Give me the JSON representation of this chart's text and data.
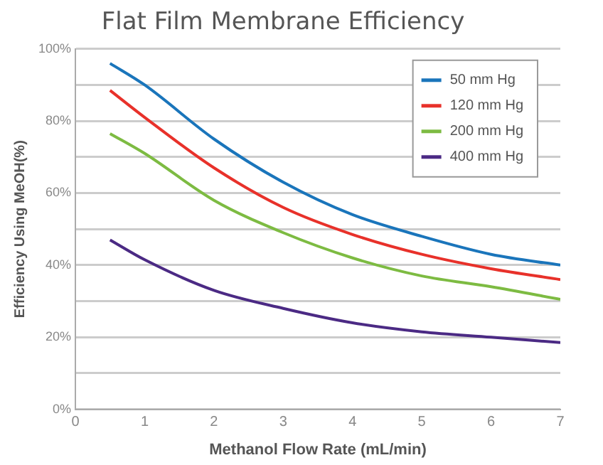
{
  "chart_data": {
    "type": "line",
    "title": "Flat Film Membrane Efficiency",
    "xlabel": "Methanol Flow Rate (mL/min)",
    "ylabel": "Efficiency Using MeOH(%)",
    "x": [
      0.5,
      1,
      2,
      3,
      4,
      5,
      6,
      7
    ],
    "series": [
      {
        "name": "50 mm Hg",
        "color": "#1a75bb",
        "values": [
          96,
          90,
          75,
          63,
          54,
          48,
          43,
          40
        ]
      },
      {
        "name": "120 mm Hg",
        "color": "#e8312a",
        "values": [
          88.5,
          81,
          67,
          56,
          48.5,
          43,
          39,
          36
        ]
      },
      {
        "name": "200 mm Hg",
        "color": "#7dbb42",
        "values": [
          76.5,
          71,
          58,
          49,
          42,
          37,
          34,
          30.5
        ]
      },
      {
        "name": "400 mm Hg",
        "color": "#4b2a84",
        "values": [
          47,
          41.5,
          33,
          28,
          24,
          21.5,
          20,
          18.5
        ]
      }
    ],
    "xlim": [
      0,
      7
    ],
    "xticks": [
      0,
      1,
      2,
      3,
      4,
      5,
      6,
      7
    ],
    "ylim": [
      0,
      100
    ],
    "yticks": [
      {
        "value": 0,
        "label": "0%"
      },
      {
        "value": 10,
        "label": null
      },
      {
        "value": 20,
        "label": "20%"
      },
      {
        "value": 30,
        "label": null
      },
      {
        "value": 40,
        "label": "40%"
      },
      {
        "value": 50,
        "label": null
      },
      {
        "value": 60,
        "label": "60%"
      },
      {
        "value": 70,
        "label": null
      },
      {
        "value": 80,
        "label": "80%"
      },
      {
        "value": 90,
        "label": null
      },
      {
        "value": 100,
        "label": "100%"
      }
    ],
    "grid": "y",
    "legend": "top right",
    "marker": "none",
    "line_style": "solid"
  }
}
